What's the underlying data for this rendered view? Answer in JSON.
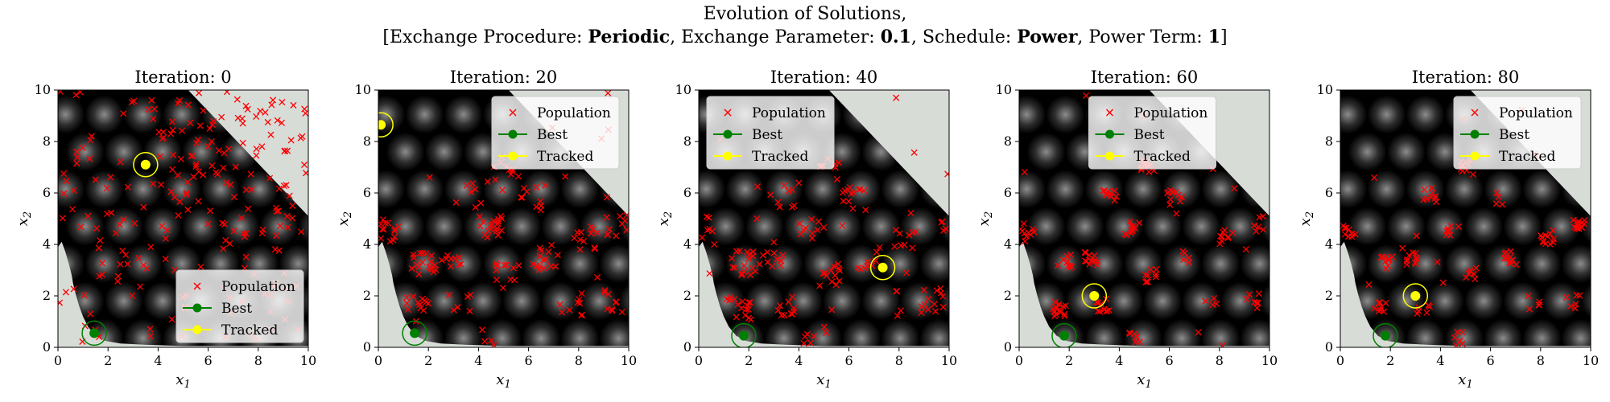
{
  "figure": {
    "title_line1": "Evolution of Solutions,",
    "title_line2_parts": [
      {
        "text": "[Exchange Procedure: ",
        "bold": false
      },
      {
        "text": "Periodic",
        "bold": true
      },
      {
        "text": ", Exchange Parameter: ",
        "bold": false
      },
      {
        "text": "0.1",
        "bold": true
      },
      {
        "text": ", Schedule: ",
        "bold": false
      },
      {
        "text": "Power",
        "bold": true
      },
      {
        "text": ", Power Term: ",
        "bold": false
      },
      {
        "text": "1",
        "bold": true
      },
      {
        "text": "]",
        "bold": false
      }
    ]
  },
  "colors": {
    "population": "#ff0000",
    "best": "#008000",
    "tracked": "#ffff00",
    "infeasible": "#d7dcd7",
    "background": "#000000",
    "blob": "#ffffff"
  },
  "chart_data": [
    {
      "type": "scatter",
      "title": "Iteration: 0",
      "iteration": 0,
      "xlabel": "x1",
      "ylabel": "x2",
      "xlim": [
        0,
        10
      ],
      "ylim": [
        0,
        10
      ],
      "xticks": [
        0,
        2,
        4,
        6,
        8,
        10
      ],
      "yticks": [
        0,
        2,
        4,
        6,
        8,
        10
      ],
      "legend": "lower-right",
      "series": [
        {
          "name": "Population",
          "marker": "x",
          "spread": "uniform",
          "count": 230,
          "seed": 11
        },
        {
          "name": "Best",
          "marker": "o",
          "x": [
            1.45
          ],
          "y": [
            0.55
          ]
        },
        {
          "name": "Tracked",
          "marker": "o",
          "x": [
            3.5
          ],
          "y": [
            7.1
          ]
        }
      ]
    },
    {
      "type": "scatter",
      "title": "Iteration: 20",
      "iteration": 20,
      "xlabel": "x1",
      "ylabel": "x2",
      "xlim": [
        0,
        10
      ],
      "ylim": [
        0,
        10
      ],
      "xticks": [
        0,
        2,
        4,
        6,
        8,
        10
      ],
      "yticks": [
        0,
        2,
        4,
        6,
        8,
        10
      ],
      "legend": "upper-right",
      "series": [
        {
          "name": "Population",
          "marker": "x",
          "spread": "clustered",
          "count": 200,
          "seed": 23
        },
        {
          "name": "Best",
          "marker": "o",
          "x": [
            1.45
          ],
          "y": [
            0.55
          ]
        },
        {
          "name": "Tracked",
          "marker": "o",
          "x": [
            0.1
          ],
          "y": [
            8.65
          ]
        }
      ]
    },
    {
      "type": "scatter",
      "title": "Iteration: 40",
      "iteration": 40,
      "xlabel": "x1",
      "ylabel": "x2",
      "xlim": [
        0,
        10
      ],
      "ylim": [
        0,
        10
      ],
      "xticks": [
        0,
        2,
        4,
        6,
        8,
        10
      ],
      "yticks": [
        0,
        2,
        4,
        6,
        8,
        10
      ],
      "legend": "upper-left",
      "series": [
        {
          "name": "Population",
          "marker": "x",
          "spread": "clustered",
          "count": 180,
          "seed": 37
        },
        {
          "name": "Best",
          "marker": "o",
          "x": [
            1.8
          ],
          "y": [
            0.45
          ]
        },
        {
          "name": "Tracked",
          "marker": "o",
          "x": [
            7.35
          ],
          "y": [
            3.1
          ]
        }
      ]
    },
    {
      "type": "scatter",
      "title": "Iteration: 60",
      "iteration": 60,
      "xlabel": "x1",
      "ylabel": "x2",
      "xlim": [
        0,
        10
      ],
      "ylim": [
        0,
        10
      ],
      "xticks": [
        0,
        2,
        4,
        6,
        8,
        10
      ],
      "yticks": [
        0,
        2,
        4,
        6,
        8,
        10
      ],
      "legend": "upper-center",
      "series": [
        {
          "name": "Population",
          "marker": "x",
          "spread": "tight",
          "count": 160,
          "seed": 41
        },
        {
          "name": "Best",
          "marker": "o",
          "x": [
            1.8
          ],
          "y": [
            0.45
          ]
        },
        {
          "name": "Tracked",
          "marker": "o",
          "x": [
            3.0
          ],
          "y": [
            2.0
          ]
        }
      ]
    },
    {
      "type": "scatter",
      "title": "Iteration: 80",
      "iteration": 80,
      "xlabel": "x1",
      "ylabel": "x2",
      "xlim": [
        0,
        10
      ],
      "ylim": [
        0,
        10
      ],
      "xticks": [
        0,
        2,
        4,
        6,
        8,
        10
      ],
      "yticks": [
        0,
        2,
        4,
        6,
        8,
        10
      ],
      "legend": "upper-right",
      "series": [
        {
          "name": "Population",
          "marker": "x",
          "spread": "tight",
          "count": 150,
          "seed": 53
        },
        {
          "name": "Best",
          "marker": "o",
          "x": [
            1.8
          ],
          "y": [
            0.45
          ]
        },
        {
          "name": "Tracked",
          "marker": "o",
          "x": [
            3.0
          ],
          "y": [
            2.0
          ]
        }
      ]
    }
  ]
}
